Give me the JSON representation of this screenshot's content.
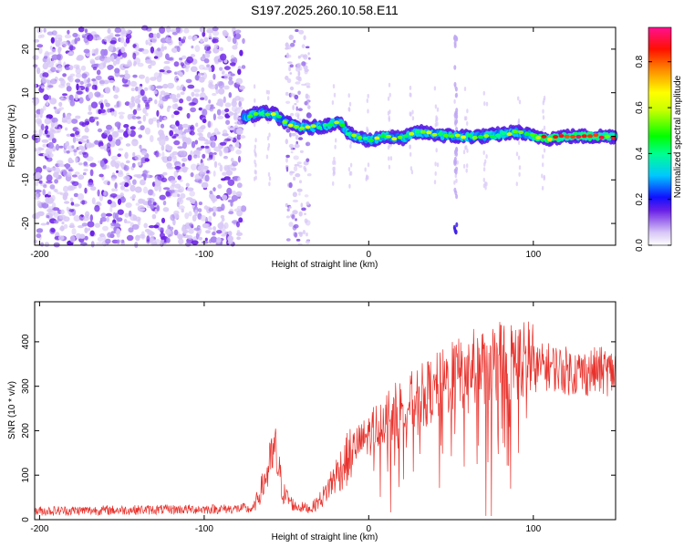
{
  "title": "S197.2025.260.10.58.E11",
  "chart_data": [
    {
      "type": "heatmap",
      "xlabel": "Height of straight line (km)",
      "ylabel": "Frequency (Hz)",
      "xlim": [
        -203,
        150
      ],
      "ylim": [
        -25,
        25
      ],
      "xticks": [
        -200,
        -100,
        0,
        100
      ],
      "yticks": [
        -20,
        -10,
        0,
        10,
        20
      ],
      "colorbar": {
        "label": "Normalized spectral amplitude",
        "range": [
          0,
          0.95
        ],
        "ticks": [
          0.0,
          0.2,
          0.4,
          0.6,
          0.8
        ]
      },
      "ridge": [
        {
          "x": -75,
          "y": 4.5
        },
        {
          "x": -65,
          "y": 5.5
        },
        {
          "x": -57,
          "y": 5
        },
        {
          "x": -50,
          "y": 3
        },
        {
          "x": -42,
          "y": 2
        },
        {
          "x": -35,
          "y": 2
        },
        {
          "x": -25,
          "y": 2.5
        },
        {
          "x": -18,
          "y": 3.5
        },
        {
          "x": -12,
          "y": 0.5
        },
        {
          "x": 0,
          "y": -1
        },
        {
          "x": 10,
          "y": 0
        },
        {
          "x": 20,
          "y": -0.5
        },
        {
          "x": 30,
          "y": 1
        },
        {
          "x": 40,
          "y": 0.5
        },
        {
          "x": 50,
          "y": 0
        },
        {
          "x": 60,
          "y": 0
        },
        {
          "x": 70,
          "y": 0
        },
        {
          "x": 80,
          "y": 0.5
        },
        {
          "x": 90,
          "y": 1
        },
        {
          "x": 100,
          "y": 0
        },
        {
          "x": 110,
          "y": -0.5
        },
        {
          "x": 120,
          "y": 0
        },
        {
          "x": 130,
          "y": 0
        },
        {
          "x": 140,
          "y": 0
        },
        {
          "x": 150,
          "y": 0
        }
      ]
    },
    {
      "type": "line",
      "xlabel": "Height of straight line (km)",
      "ylabel": "SNR (10 * v/v)",
      "xlim": [
        -203,
        150
      ],
      "ylim": [
        0,
        490
      ],
      "xticks": [
        -200,
        -100,
        0,
        100
      ],
      "yticks": [
        0,
        100,
        200,
        300,
        400
      ],
      "color": "#e8322c",
      "envelope": [
        {
          "x": -203,
          "y": 15
        },
        {
          "x": -80,
          "y": 20
        },
        {
          "x": -70,
          "y": 25
        },
        {
          "x": -64,
          "y": 80
        },
        {
          "x": -57,
          "y": 155
        },
        {
          "x": -52,
          "y": 60
        },
        {
          "x": -45,
          "y": 30
        },
        {
          "x": -35,
          "y": 25
        },
        {
          "x": -28,
          "y": 50
        },
        {
          "x": -20,
          "y": 100
        },
        {
          "x": -10,
          "y": 150
        },
        {
          "x": 0,
          "y": 180
        },
        {
          "x": 10,
          "y": 220
        },
        {
          "x": 20,
          "y": 240
        },
        {
          "x": 30,
          "y": 260
        },
        {
          "x": 40,
          "y": 280
        },
        {
          "x": 50,
          "y": 300
        },
        {
          "x": 60,
          "y": 320
        },
        {
          "x": 70,
          "y": 330
        },
        {
          "x": 80,
          "y": 340
        },
        {
          "x": 90,
          "y": 340
        },
        {
          "x": 100,
          "y": 340
        },
        {
          "x": 110,
          "y": 345
        },
        {
          "x": 120,
          "y": 335
        },
        {
          "x": 130,
          "y": 330
        },
        {
          "x": 140,
          "y": 335
        },
        {
          "x": 150,
          "y": 330
        }
      ]
    }
  ]
}
